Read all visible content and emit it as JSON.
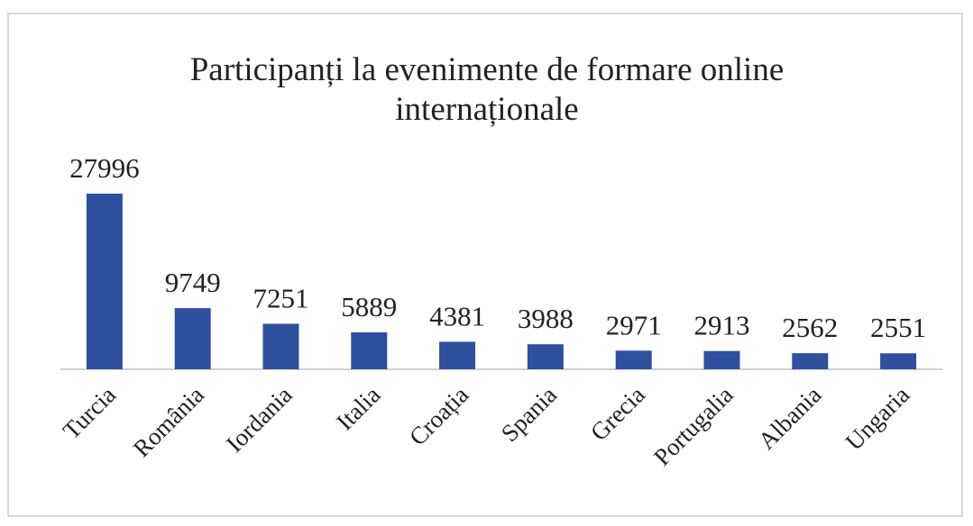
{
  "chart_data": {
    "type": "bar",
    "title": "Participanți la evenimente de formare online internaționale",
    "categories": [
      "Turcia",
      "România",
      "Iordania",
      "Italia",
      "Croația",
      "Spania",
      "Grecia",
      "Portugalia",
      "Albania",
      "Ungaria"
    ],
    "values": [
      27996,
      9749,
      7251,
      5889,
      4381,
      3988,
      2971,
      2913,
      2562,
      2551
    ],
    "color": "#2f4f9f"
  }
}
